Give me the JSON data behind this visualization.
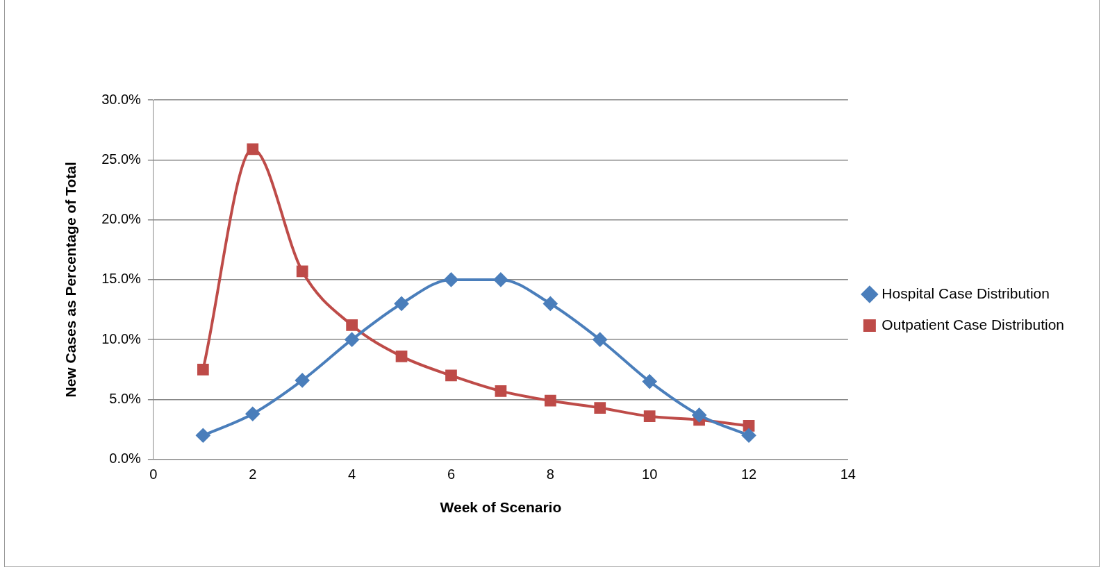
{
  "chart_data": {
    "type": "line",
    "xlabel": "Week of Scenario",
    "ylabel": "New Cases as Percentage of Total",
    "x": [
      1,
      2,
      3,
      4,
      5,
      6,
      7,
      8,
      9,
      10,
      11,
      12
    ],
    "series": [
      {
        "name": "Hospital Case Distribution",
        "color": "#4a7ebb",
        "marker": "diamond",
        "values": [
          2.0,
          3.8,
          6.6,
          10.0,
          13.0,
          15.0,
          15.0,
          13.0,
          10.0,
          6.5,
          3.7,
          2.0
        ]
      },
      {
        "name": "Outpatient Case Distribution",
        "color": "#be4b48",
        "marker": "square",
        "values": [
          7.5,
          25.9,
          15.7,
          11.2,
          8.6,
          7.0,
          5.7,
          4.9,
          4.3,
          3.6,
          3.3,
          2.8
        ]
      }
    ],
    "xlim": [
      0,
      14
    ],
    "xticks": [
      0,
      2,
      4,
      6,
      8,
      10,
      12,
      14
    ],
    "ylim": [
      0,
      30
    ],
    "yticks": [
      {
        "value": 0,
        "label": "0.0%"
      },
      {
        "value": 5,
        "label": "5.0%"
      },
      {
        "value": 10,
        "label": "10.0%"
      },
      {
        "value": 15,
        "label": "15.0%"
      },
      {
        "value": 20,
        "label": "20.0%"
      },
      {
        "value": 25,
        "label": "25.0%"
      },
      {
        "value": 30,
        "label": "30.0%"
      }
    ],
    "grid": "y",
    "legend": "right",
    "line_style": "solid"
  }
}
